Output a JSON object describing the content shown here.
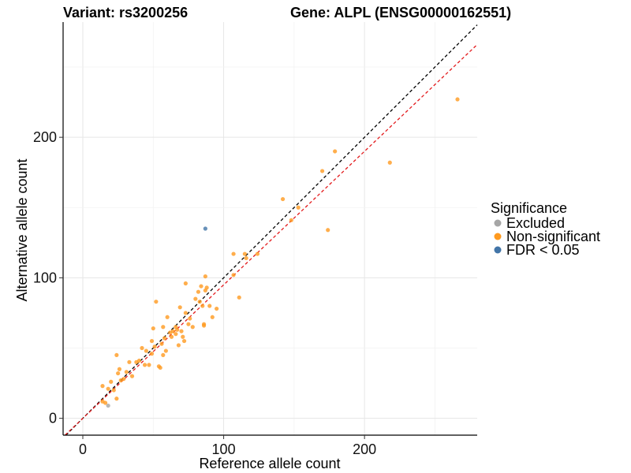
{
  "chart_data": {
    "type": "scatter",
    "title_left": "Variant: rs3200256",
    "title_right": "Gene: ALPL (ENSG00000162551)",
    "xlabel": "Reference allele count",
    "ylabel": "Alternative allele count",
    "xlim": [
      -14,
      280
    ],
    "ylim": [
      -12,
      282
    ],
    "x_ticks": [
      0,
      100,
      200
    ],
    "y_ticks": [
      0,
      100,
      200
    ],
    "grid": true,
    "legend": {
      "title": "Significance",
      "placement": "right",
      "entries": [
        {
          "label": "Excluded",
          "color": "#a6a6a6"
        },
        {
          "label": "Non-significant",
          "color": "#ff9a1f"
        },
        {
          "label": "FDR < 0.05",
          "color": "#4275a8"
        }
      ]
    },
    "reference_lines": [
      {
        "kind": "identity",
        "slope": 1.0,
        "intercept": 0,
        "color": "#000000",
        "dash": "dashed"
      },
      {
        "kind": "fit",
        "slope": 0.95,
        "intercept": 0,
        "color": "#e31a1c",
        "dash": "dashed"
      }
    ],
    "series": [
      {
        "name": "Excluded",
        "color": "#a6a6a6",
        "points": [
          [
            18,
            9
          ]
        ]
      },
      {
        "name": "Non-significant",
        "color": "#ff9a1f",
        "points": [
          [
            14,
            12
          ],
          [
            16,
            11
          ],
          [
            14,
            23
          ],
          [
            18,
            21
          ],
          [
            20,
            26
          ],
          [
            22,
            20
          ],
          [
            24,
            14
          ],
          [
            24,
            45
          ],
          [
            25,
            32
          ],
          [
            26,
            35
          ],
          [
            27,
            27
          ],
          [
            29,
            28
          ],
          [
            31,
            33
          ],
          [
            33,
            40
          ],
          [
            35,
            30
          ],
          [
            38,
            40
          ],
          [
            40,
            41
          ],
          [
            42,
            50
          ],
          [
            44,
            38
          ],
          [
            45,
            48
          ],
          [
            47,
            38
          ],
          [
            49,
            55
          ],
          [
            49,
            46
          ],
          [
            50,
            64
          ],
          [
            51,
            51
          ],
          [
            52,
            83
          ],
          [
            54,
            37
          ],
          [
            55,
            36
          ],
          [
            56,
            53
          ],
          [
            57,
            45
          ],
          [
            57,
            65
          ],
          [
            58,
            57
          ],
          [
            59,
            48
          ],
          [
            60,
            72
          ],
          [
            62,
            61
          ],
          [
            63,
            58
          ],
          [
            64,
            62
          ],
          [
            66,
            60
          ],
          [
            66,
            65
          ],
          [
            67,
            63
          ],
          [
            68,
            52
          ],
          [
            69,
            79
          ],
          [
            70,
            62
          ],
          [
            71,
            58
          ],
          [
            72,
            55
          ],
          [
            73,
            75
          ],
          [
            73,
            96
          ],
          [
            75,
            67
          ],
          [
            76,
            71
          ],
          [
            78,
            65
          ],
          [
            80,
            85
          ],
          [
            82,
            90
          ],
          [
            83,
            83
          ],
          [
            84,
            94
          ],
          [
            85,
            80
          ],
          [
            86,
            66
          ],
          [
            86,
            67
          ],
          [
            87,
            101
          ],
          [
            87,
            91
          ],
          [
            88,
            93
          ],
          [
            90,
            80
          ],
          [
            92,
            72
          ],
          [
            95,
            78
          ],
          [
            107,
            102
          ],
          [
            107,
            117
          ],
          [
            111,
            86
          ],
          [
            115,
            117
          ],
          [
            116,
            114
          ],
          [
            124,
            117
          ],
          [
            142,
            156
          ],
          [
            148,
            141
          ],
          [
            153,
            150
          ],
          [
            170,
            176
          ],
          [
            174,
            134
          ],
          [
            179,
            190
          ],
          [
            218,
            182
          ],
          [
            266,
            227
          ]
        ]
      },
      {
        "name": "FDR < 0.05",
        "color": "#4275a8",
        "points": [
          [
            87,
            135
          ]
        ]
      }
    ]
  }
}
